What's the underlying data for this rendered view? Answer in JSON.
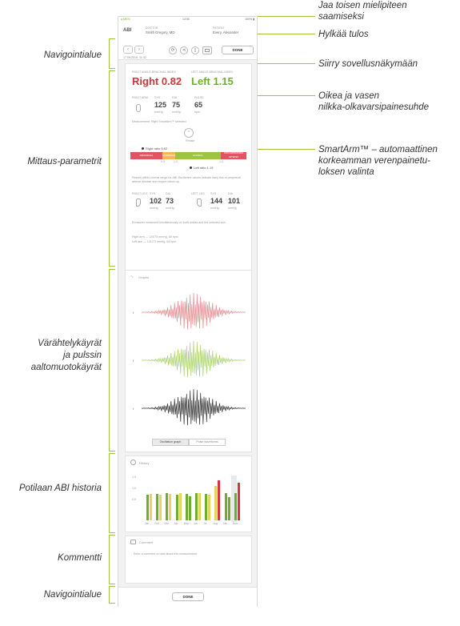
{
  "callouts": {
    "navigation_area": "Navigointialue",
    "measurement_params": "Mittaus-parametrit",
    "waveforms": [
      "Värähtelykäyrät",
      "ja pulssin",
      "aaltomuotokäyrät"
    ],
    "abi_history": "Potilaan ABI historia",
    "comment": "Kommentti",
    "navigation_area_bottom": "Navigointialue",
    "share_opinion": [
      "Jaa toisen mielipiteen",
      "saamiseksi"
    ],
    "reject_result": "Hylkää tulos",
    "go_to_app_view": "Siirry sovellusnäkymään",
    "ankle_brachial_ratio": [
      "Oikea ja vasen",
      "nilkka-olkavarsipainesuhde"
    ],
    "smartarm": [
      "SmartArm™ – automaattinen",
      "korkeamman verenpainetu-",
      "loksen valinta"
    ]
  },
  "tablet": {
    "status": {
      "carrier": "● MESI",
      "time": "13:00",
      "battery": "100% ▮"
    },
    "header": {
      "app_label": "ABI",
      "doctor_caption": "DOCTOR",
      "doctor_name": "Smith Gregory, MD",
      "patient_caption": "PATIENT",
      "patient_name": "Every, Alexander",
      "date": "17.09.2019, 11:42",
      "done_label": "DONE"
    },
    "results": {
      "right_caption": "RIGHT ANKLE-BRACHIAL INDEX",
      "right_value": "Right 0.82",
      "left_caption": "LEFT ANKLE-BRACHIAL INDEX",
      "left_value": "Left 1.15",
      "right_arm_caption": "RIGHT ARM",
      "sys_caption": "SYS",
      "dia_caption": "DIA",
      "pulse_caption": "PULSE",
      "sys": "125",
      "dia": "75",
      "pulse": "65",
      "unit_mmhg": "mmHg",
      "unit_bpm": "bpm",
      "smartarm_note": "Measurement: Right SmartArm™ selected",
      "retake_label": "Retake",
      "right_ratio": "Right ratio 0.82",
      "left_ratio": "Left ratio 1.15",
      "scale": [
        "ABNORMAL",
        "BORDERLINE",
        "NORMAL",
        "NONCOMPRESSIBLE ARTERIES"
      ],
      "scale_ticks": [
        "0.9",
        "1.0",
        "1.4"
      ],
      "info_text": "Results within normal range for ABI. Borderline values indicate early risk of peripheral arterial disease and require follow-up.",
      "right_leg_caption": "RIGHT LEG",
      "left_leg_caption": "LEFT LEG",
      "right_leg_sys": "102",
      "right_leg_dia": "73",
      "left_leg_sys": "144",
      "left_leg_dia": "101",
      "leg_note": "Pressures measured simultaneously on both ankles and the selected arm.",
      "right_summary": "Right arm — 125/75 mmHg, 65 bpm",
      "left_summary": "Left arm — 121/73 mmHg, 64 bpm"
    },
    "graphs": {
      "title": "Graphs",
      "tab_oscillation": "Oscillation graph",
      "tab_pulse": "Pulse waveforms"
    },
    "history": {
      "title": "History",
      "y_ticks": [
        "1.5",
        "1.0",
        "0.5"
      ],
      "x_labels": [
        "Jan",
        "Feb",
        "Mar",
        "Apr",
        "May",
        "Jun",
        "Jul",
        "Aug",
        "Sep",
        "Now"
      ]
    },
    "comment": {
      "title": "Comment",
      "placeholder": "Enter a comment or note about this measurement"
    },
    "bottom_done": "DONE"
  },
  "colors": {
    "accent_green": "#9cc53c",
    "right_red": "#d7333a",
    "left_green": "#6fae2c",
    "wave_red": "#e58b8f",
    "wave_green": "#a9d26b",
    "wave_black": "#333333",
    "scale_abnormal": "#e05561",
    "scale_borderline": "#f1b85a",
    "scale_normal": "#9cc53c"
  },
  "chart_data": {
    "type": "bar",
    "categories": [
      "Jan",
      "Feb",
      "Mar",
      "Apr",
      "May",
      "Jun",
      "Jul",
      "Aug",
      "Sep",
      "Now"
    ],
    "series": [
      {
        "values": [
          0.78,
          0.8,
          0.82,
          0.78,
          0.8,
          0.83,
          0.81,
          1.05,
          0.82,
          0.82
        ]
      },
      {
        "values": [
          0.8,
          0.78,
          0.8,
          0.82,
          0.72,
          0.82,
          0.78,
          1.22,
          0.7,
          1.15
        ]
      }
    ],
    "ylim": [
      0,
      1.6
    ]
  }
}
